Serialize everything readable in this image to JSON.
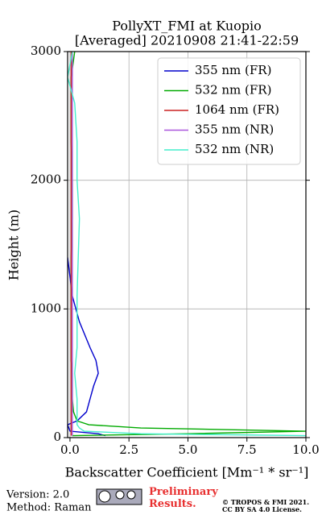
{
  "chart_data": {
    "type": "profile",
    "title": "PollyXT_FMI at Kuopio",
    "subtitle": "[Averaged] 20210908 21:41-22:59",
    "x_label": "Backscatter Coefficient [Mm⁻¹ * sr⁻¹]",
    "y_label": "Height (m)",
    "y": [
      15,
      30,
      50,
      75,
      100,
      130,
      200,
      300,
      400,
      500,
      600,
      700,
      900,
      1100,
      1400,
      1700,
      2000,
      2300,
      2600,
      2800,
      3000
    ],
    "series": [
      {
        "name": "355 nm (FR)",
        "color": "#0000cc",
        "values": [
          1.5,
          1.2,
          0.0,
          -0.05,
          -0.1,
          0.3,
          0.7,
          0.85,
          1.0,
          1.2,
          1.1,
          0.85,
          0.4,
          0.1,
          -0.1,
          null,
          null,
          null,
          null,
          null,
          null
        ]
      },
      {
        "name": "532 nm (FR)",
        "color": "#00aa00",
        "values": [
          0.1,
          5,
          10,
          3,
          0.8,
          0.3,
          0.15,
          0.1,
          0.1,
          0.1,
          0.05,
          0.05,
          0.05,
          0.05,
          0.05,
          0.1,
          0.1,
          0.05,
          0.05,
          0.05,
          0.2
        ]
      },
      {
        "name": "1064 nm (FR)",
        "color": "#cc2222",
        "values": [
          0.05,
          0.05,
          0.05,
          0.05,
          0.05,
          0.05,
          0.05,
          0.05,
          0.05,
          0.05,
          0.05,
          0.05,
          0.05,
          0.05,
          0.05,
          0.05,
          0.05,
          0.05,
          0.05,
          0.05,
          0.05
        ]
      },
      {
        "name": "355 nm (NR)",
        "color": "#aa55dd",
        "values": [
          0.1,
          0.1,
          0.1,
          0.1,
          0.1,
          0.1,
          0.1,
          0.1,
          0.1,
          0.1,
          0.1,
          0.1,
          0.1,
          0.1,
          0.1,
          0.1,
          0.1,
          0.1,
          0.1,
          0.1,
          0.1
        ]
      },
      {
        "name": "532 nm (NR)",
        "color": "#44eecc",
        "values": [
          10,
          3,
          0.6,
          0.4,
          0.3,
          0.3,
          0.3,
          0.3,
          0.25,
          0.2,
          0.25,
          0.3,
          0.3,
          0.3,
          0.35,
          0.4,
          0.3,
          0.3,
          0.2,
          -0.1,
          0.1
        ]
      }
    ],
    "xlim": [
      -0.1,
      10
    ],
    "xticks": [
      {
        "value": 0,
        "label": "0.0"
      },
      {
        "value": 2.5,
        "label": "2.5"
      },
      {
        "value": 5,
        "label": "5.0"
      },
      {
        "value": 7.5,
        "label": "7.5"
      },
      {
        "value": 10,
        "label": "10.0"
      }
    ],
    "ylim": [
      0,
      3000
    ],
    "yticks": [
      0,
      1000,
      2000,
      3000
    ],
    "grid": true,
    "legend": "upper right"
  },
  "footer": {
    "version": "Version: 2.0",
    "method": "Method: Raman",
    "notice": "Preliminary Results.",
    "copyright": "© TROPOS & FMI 2021.",
    "license": "CC BY SA 4.0 License."
  }
}
